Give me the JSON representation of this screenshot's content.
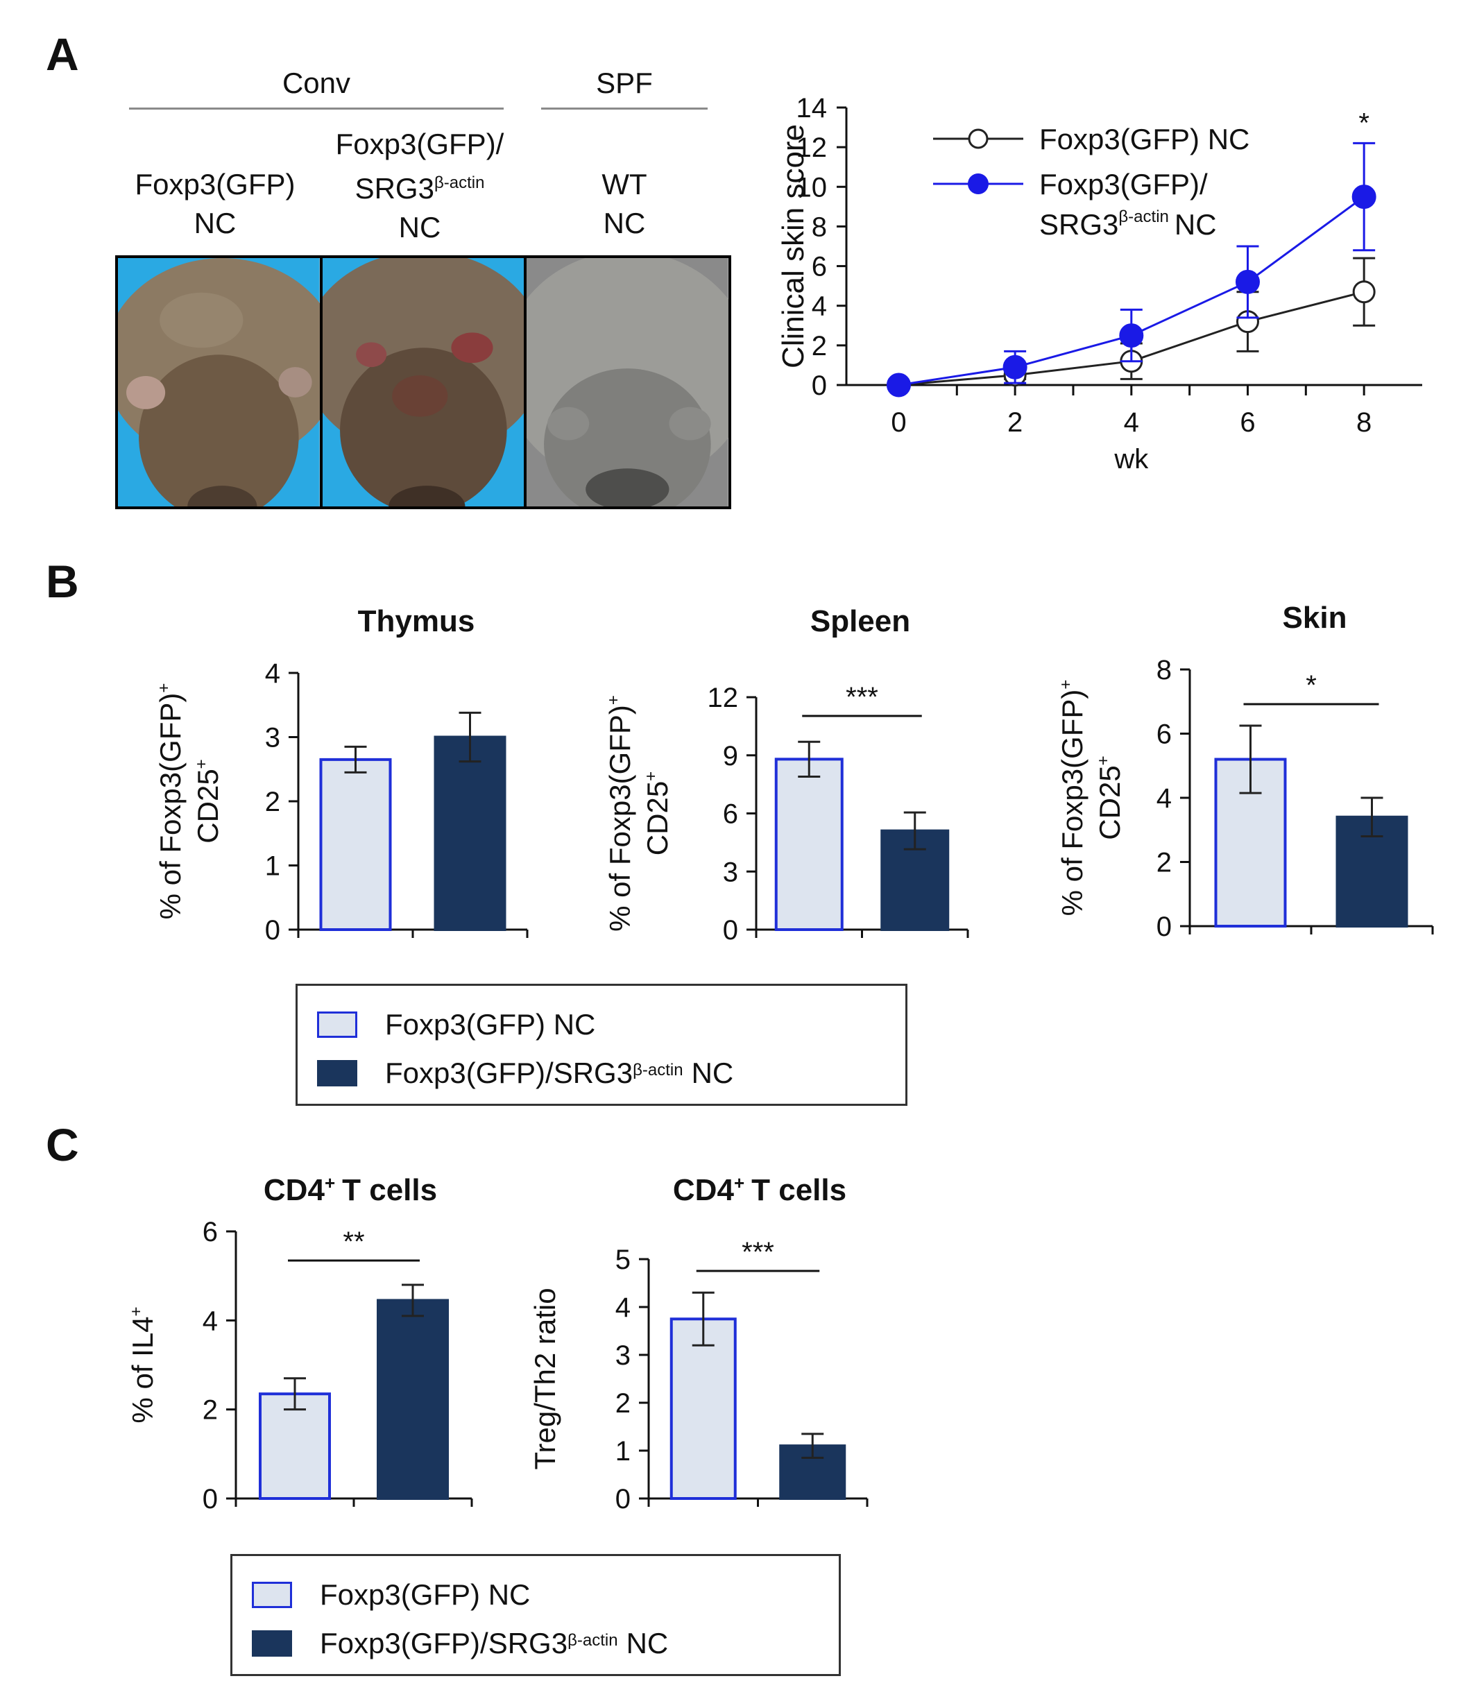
{
  "panel_labels": {
    "a": "A",
    "b": "B",
    "c": "C"
  },
  "panel_a": {
    "group_headers": {
      "conv": "Conv",
      "spf": "SPF"
    },
    "photo_labels": [
      {
        "line1": "Foxp3(GFP)",
        "line2": "NC"
      },
      {
        "line1": "Foxp3(GFP)/",
        "line2_base": "SRG3",
        "line2_sup": "β-actin",
        "line3": "NC"
      },
      {
        "line1": "WT",
        "line2": "NC"
      }
    ],
    "photo_descriptions": [
      "mouse-back-dermatitis",
      "mouse-back-severe-dermatitis",
      "mouse-back-healthy"
    ]
  },
  "colors": {
    "series1_fill": "#dde4ef",
    "series1_edge": "#1f2fd8",
    "series2_fill": "#1a355c",
    "line1": "#222222",
    "line2": "#1a1ae6",
    "photo_bg": "#2aa9e3"
  },
  "legends": {
    "b": {
      "item1": "Foxp3(GFP) NC",
      "item2_base": "Foxp3(GFP)/SRG3",
      "item2_sup": "β-actin",
      "item2_tail": "NC"
    },
    "c": {
      "item1": "Foxp3(GFP) NC",
      "item2_base": "Foxp3(GFP)/SRG3",
      "item2_sup": "β-actin",
      "item2_tail": "NC"
    }
  },
  "chart_data": [
    {
      "id": "skin-score",
      "type": "line",
      "title": "",
      "xlabel": "wk",
      "ylabel": "Clinical skin score",
      "x": [
        0,
        2,
        4,
        6,
        8
      ],
      "xlim": [
        -0.9,
        9
      ],
      "ylim": [
        0,
        14
      ],
      "yticks": [
        0,
        2,
        4,
        6,
        8,
        10,
        12,
        14
      ],
      "series": [
        {
          "name": "Foxp3(GFP) NC",
          "values": [
            0,
            0.5,
            1.2,
            3.2,
            4.7
          ],
          "errors": [
            0,
            0.2,
            0.9,
            1.5,
            1.7
          ]
        },
        {
          "name": "Foxp3(GFP)/SRG3β-actin NC",
          "name_base": "Foxp3(GFP)/",
          "name_line2": "SRG3",
          "name_sup": "β-actin",
          "name_tail": "NC",
          "values": [
            0,
            0.9,
            2.5,
            5.2,
            9.5
          ],
          "errors": [
            0,
            0.8,
            1.3,
            1.8,
            2.7
          ]
        }
      ],
      "annotations": [
        {
          "x": 8,
          "text": "*"
        }
      ],
      "legend_position": "top-left"
    },
    {
      "id": "thymus",
      "type": "bar",
      "title": "Thymus",
      "ylabel_line1": "% of Foxp3(GFP)",
      "ylabel_sup1": "+",
      "ylabel_line2": "CD25",
      "ylabel_sup2": "+",
      "ylim": [
        0,
        4
      ],
      "yticks": [
        0,
        1,
        2,
        3,
        4
      ],
      "series": [
        {
          "name": "Foxp3(GFP) NC",
          "value": 2.65,
          "error": 0.2
        },
        {
          "name": "Foxp3(GFP)/SRG3β-actin NC",
          "value": 3.0,
          "error": 0.38
        }
      ],
      "significance": ""
    },
    {
      "id": "spleen",
      "type": "bar",
      "title": "Spleen",
      "ylabel_line1": "% of Foxp3(GFP)",
      "ylabel_sup1": "+",
      "ylabel_line2": "CD25",
      "ylabel_sup2": "+",
      "ylim": [
        0,
        12
      ],
      "yticks": [
        0,
        3,
        6,
        9,
        12
      ],
      "series": [
        {
          "name": "Foxp3(GFP) NC",
          "value": 8.8,
          "error": 0.9
        },
        {
          "name": "Foxp3(GFP)/SRG3β-actin NC",
          "value": 5.1,
          "error": 0.95
        }
      ],
      "significance": "***"
    },
    {
      "id": "skin",
      "type": "bar",
      "title": "Skin",
      "ylabel_line1": "% of Foxp3(GFP)",
      "ylabel_sup1": "+",
      "ylabel_line2": "CD25",
      "ylabel_sup2": "+",
      "ylim": [
        0,
        8
      ],
      "yticks": [
        0,
        2,
        4,
        6,
        8
      ],
      "series": [
        {
          "name": "Foxp3(GFP) NC",
          "value": 5.2,
          "error": 1.05
        },
        {
          "name": "Foxp3(GFP)/SRG3β-actin NC",
          "value": 3.4,
          "error": 0.6
        }
      ],
      "significance": "*"
    },
    {
      "id": "il4",
      "type": "bar",
      "title_base": "CD4",
      "title_sup": "+",
      "title_tail": "T cells",
      "ylabel_base": "% of IL4",
      "ylabel_sup": "+",
      "ylim": [
        0,
        6
      ],
      "yticks": [
        0,
        2,
        4,
        6
      ],
      "series": [
        {
          "name": "Foxp3(GFP) NC",
          "value": 2.35,
          "error": 0.35
        },
        {
          "name": "Foxp3(GFP)/SRG3β-actin NC",
          "value": 4.45,
          "error": 0.35
        }
      ],
      "significance": "**"
    },
    {
      "id": "treg-th2",
      "type": "bar",
      "title_base": "CD4",
      "title_sup": "+",
      "title_tail": "T cells",
      "ylabel": "Treg/Th2 ratio",
      "ylim": [
        0,
        5
      ],
      "yticks": [
        0,
        1,
        2,
        3,
        4,
        5
      ],
      "series": [
        {
          "name": "Foxp3(GFP) NC",
          "value": 3.75,
          "error": 0.55
        },
        {
          "name": "Foxp3(GFP)/SRG3β-actin NC",
          "value": 1.1,
          "error": 0.25
        }
      ],
      "significance": "***"
    }
  ]
}
